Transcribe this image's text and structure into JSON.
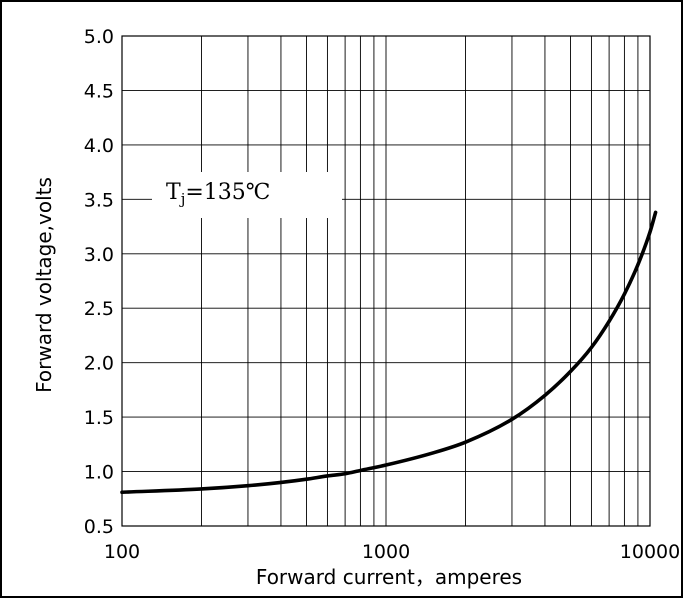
{
  "chart_data": {
    "type": "line",
    "title": "",
    "xlabel": "Forward current，amperes",
    "ylabel": "Forward voltage,volts",
    "x_scale": "log",
    "xlim": [
      100,
      10000
    ],
    "ylim": [
      0.5,
      5.0
    ],
    "x_ticks": [
      "100",
      "1000",
      "10000"
    ],
    "y_ticks": [
      "0.5",
      "1.0",
      "1.5",
      "2.0",
      "2.5",
      "3.0",
      "3.5",
      "4.0",
      "4.5",
      "5.0"
    ],
    "grid": true,
    "annotation": {
      "main": "T",
      "sub": "j",
      "rest": "=135℃"
    },
    "series": [
      {
        "color": "#000000",
        "x": [
          100,
          200,
          300,
          400,
          500,
          600,
          700,
          800,
          1000,
          1500,
          2000,
          3000,
          4000,
          5000,
          6000,
          7000,
          8000,
          9000,
          10000,
          10500
        ],
        "y": [
          0.81,
          0.84,
          0.87,
          0.9,
          0.93,
          0.96,
          0.98,
          1.01,
          1.06,
          1.17,
          1.27,
          1.48,
          1.7,
          1.92,
          2.14,
          2.38,
          2.63,
          2.9,
          3.2,
          3.38
        ]
      }
    ]
  }
}
